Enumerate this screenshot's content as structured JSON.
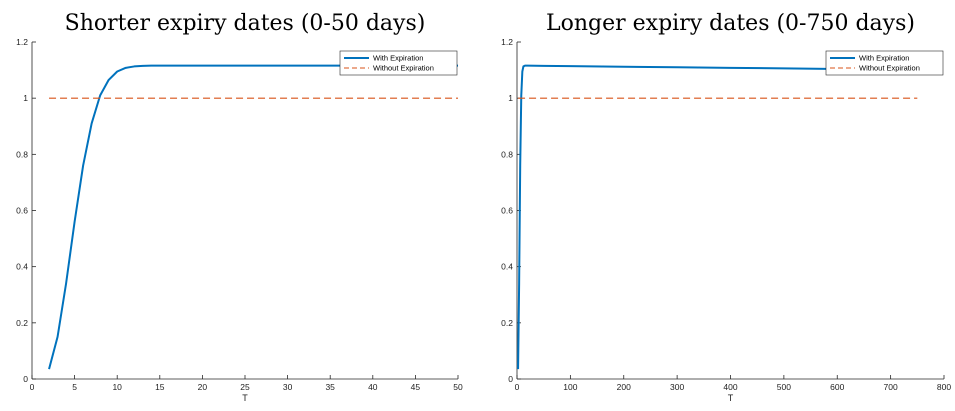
{
  "chart_data": [
    {
      "type": "line",
      "title": "Shorter expiry dates (0-50 days)",
      "xlabel": "T",
      "ylabel": "",
      "xlim": [
        0,
        50
      ],
      "ylim": [
        0,
        1.2
      ],
      "xticks": [
        0,
        5,
        10,
        15,
        20,
        25,
        30,
        35,
        40,
        45,
        50
      ],
      "yticks": [
        0,
        0.2,
        0.4,
        0.6,
        0.8,
        1,
        1.2
      ],
      "xtick_labels": [
        "0",
        "5",
        "10",
        "15",
        "20",
        "25",
        "30",
        "35",
        "40",
        "45",
        "50"
      ],
      "ytick_labels": [
        "0",
        "0.2",
        "0.4",
        "0.6",
        "0.8",
        "1",
        "1.2"
      ],
      "grid": false,
      "legend_position": "top-right",
      "series": [
        {
          "name": "With Expiration",
          "color": "#0072BD",
          "style": "solid",
          "x": [
            2,
            3,
            4,
            5,
            6,
            7,
            8,
            9,
            10,
            11,
            12,
            13,
            14,
            15,
            17,
            20,
            25,
            30,
            35,
            40,
            45,
            50
          ],
          "y": [
            0.035,
            0.15,
            0.34,
            0.56,
            0.76,
            0.91,
            1.01,
            1.065,
            1.095,
            1.108,
            1.113,
            1.115,
            1.116,
            1.116,
            1.116,
            1.116,
            1.116,
            1.116,
            1.116,
            1.116,
            1.116,
            1.116
          ]
        },
        {
          "name": "Without Expiration",
          "color": "#D95319",
          "style": "dashed",
          "x": [
            2,
            50
          ],
          "y": [
            1,
            1
          ]
        }
      ]
    },
    {
      "type": "line",
      "title": "Longer expiry dates (0-750 days)",
      "xlabel": "T",
      "ylabel": "",
      "xlim": [
        0,
        800
      ],
      "ylim": [
        0,
        1.2
      ],
      "xticks": [
        0,
        100,
        200,
        300,
        400,
        500,
        600,
        700,
        800
      ],
      "yticks": [
        0,
        0.2,
        0.4,
        0.6,
        0.8,
        1,
        1.2
      ],
      "xtick_labels": [
        "0",
        "100",
        "200",
        "300",
        "400",
        "500",
        "600",
        "700",
        "800"
      ],
      "ytick_labels": [
        "0",
        "0.2",
        "0.4",
        "0.6",
        "0.8",
        "1",
        "1.2"
      ],
      "grid": false,
      "legend_position": "top-right",
      "series": [
        {
          "name": "With Expiration",
          "color": "#0072BD",
          "style": "solid",
          "x": [
            2,
            4,
            6,
            8,
            10,
            12,
            15,
            20,
            50,
            100,
            200,
            300,
            400,
            500,
            600,
            650,
            700,
            750
          ],
          "y": [
            0.035,
            0.34,
            0.76,
            1.01,
            1.095,
            1.113,
            1.116,
            1.116,
            1.115,
            1.114,
            1.112,
            1.11,
            1.108,
            1.106,
            1.104,
            1.103,
            1.102,
            1.101
          ]
        },
        {
          "name": "Without Expiration",
          "color": "#D95319",
          "style": "dashed",
          "x": [
            2,
            750
          ],
          "y": [
            1,
            1
          ]
        }
      ]
    }
  ]
}
